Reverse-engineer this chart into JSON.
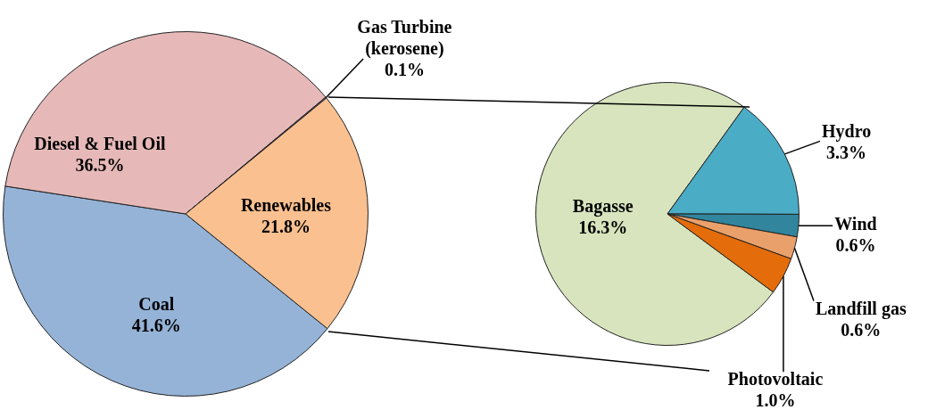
{
  "chart_data": [
    {
      "type": "pie",
      "categories": [
        "Coal",
        "Diesel & Fuel Oil",
        "Gas Turbine (kerosene)",
        "Renewables"
      ],
      "values": [
        41.6,
        36.5,
        0.1,
        21.8
      ],
      "colors": [
        "#95b3d7",
        "#e6b9b8",
        "#8064a2",
        "#fac090"
      ],
      "value_labels": [
        "41.6%",
        "36.5%",
        "0.1%",
        "21.8%"
      ]
    },
    {
      "type": "pie",
      "categories": [
        "Bagasse",
        "Hydro",
        "Wind",
        "Landfill gas",
        "Photovoltaic"
      ],
      "values": [
        16.3,
        3.3,
        0.6,
        0.6,
        1.0
      ],
      "colors": [
        "#d7e4bd",
        "#4bacc6",
        "#31859c",
        "#e9a06a",
        "#e46c0a"
      ],
      "value_labels": [
        "16.3%",
        "3.3%",
        "0.6%",
        "0.6%",
        "1.0%"
      ]
    }
  ]
}
